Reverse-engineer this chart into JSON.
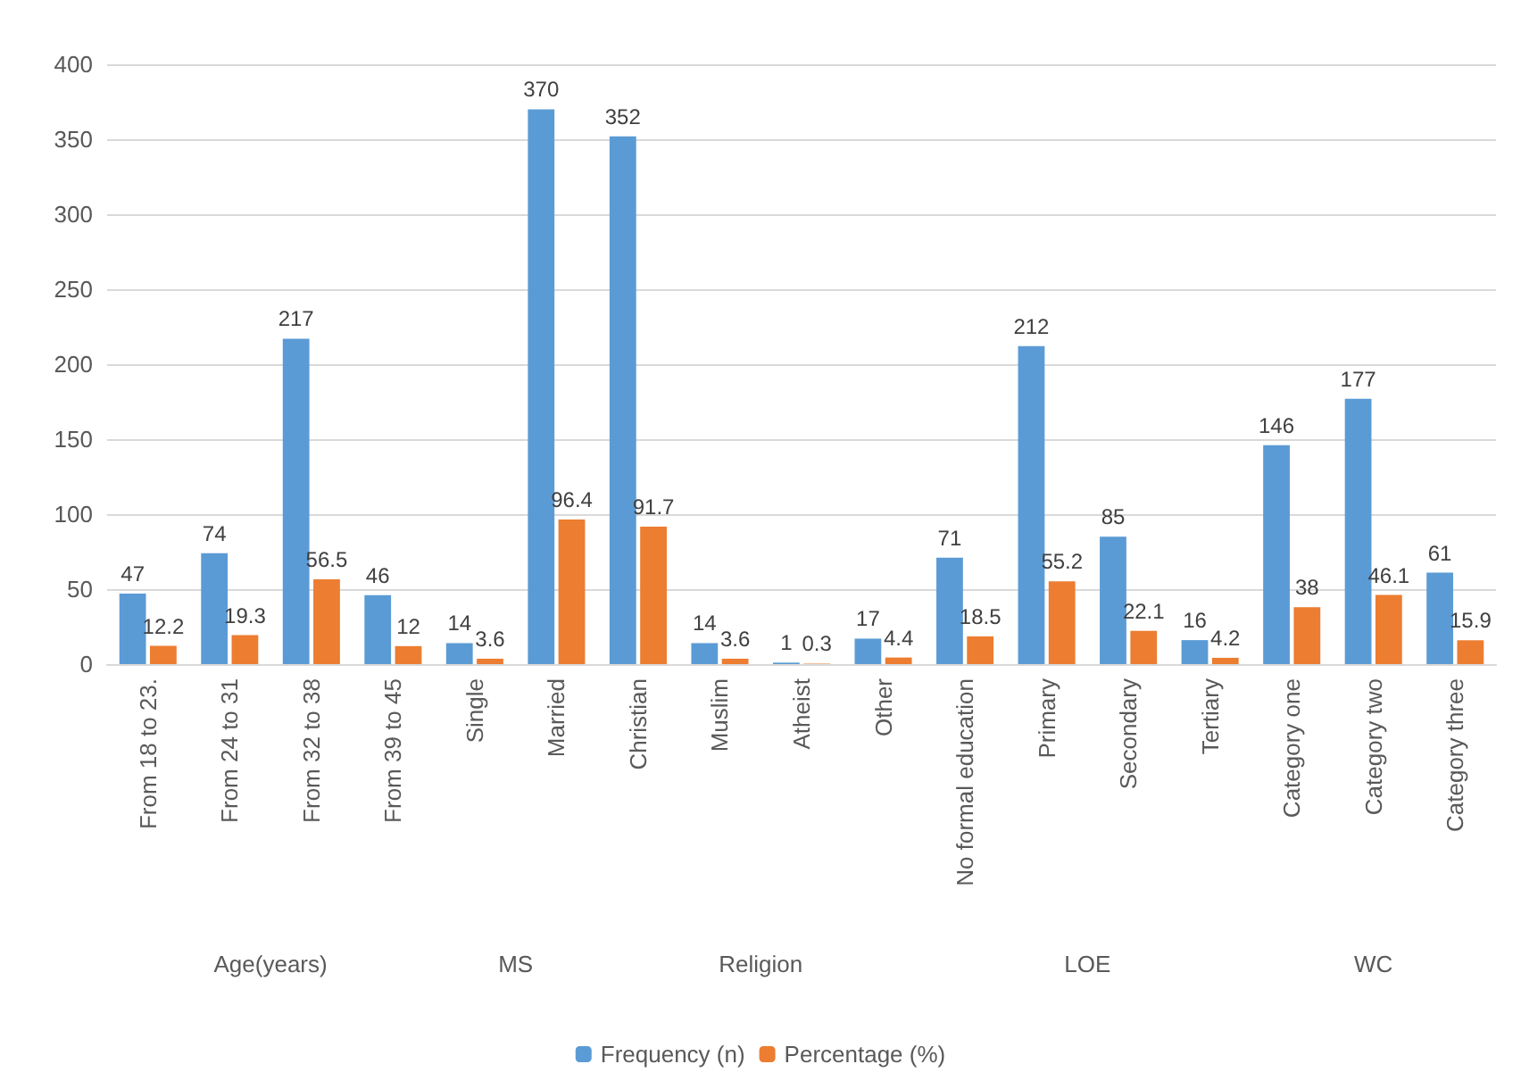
{
  "chart_data": {
    "type": "bar",
    "categories": [
      "From 18 to 23.",
      "From 24 to 31",
      "From 32 to 38",
      "From 39 to 45",
      "Single",
      "Married",
      "Christian",
      "Muslim",
      "Atheist",
      "Other",
      "No formal education",
      "Primary",
      "Secondary",
      "Tertiary",
      "Category one",
      "Category two",
      "Category three"
    ],
    "series": [
      {
        "name": "Frequency (n)",
        "color": "#5b9bd5",
        "values": [
          47,
          74,
          217,
          46,
          14,
          370,
          352,
          14,
          1,
          17,
          71,
          212,
          85,
          16,
          146,
          177,
          61
        ]
      },
      {
        "name": "Percentage (%)",
        "color": "#ed7d31",
        "values": [
          12.2,
          19.3,
          56.5,
          12,
          3.6,
          96.4,
          91.7,
          3.6,
          0.3,
          4.4,
          18.5,
          55.2,
          22.1,
          4.2,
          38,
          46.1,
          15.9
        ]
      }
    ],
    "annotations": [
      "Age(years)",
      "MS",
      "Religion",
      "LOE",
      "WC"
    ],
    "ylim": [
      0,
      400
    ],
    "yticks": [
      0,
      50,
      100,
      150,
      200,
      250,
      300,
      350,
      400
    ],
    "grid": "y",
    "legend": "bottom",
    "data_labels": true
  }
}
